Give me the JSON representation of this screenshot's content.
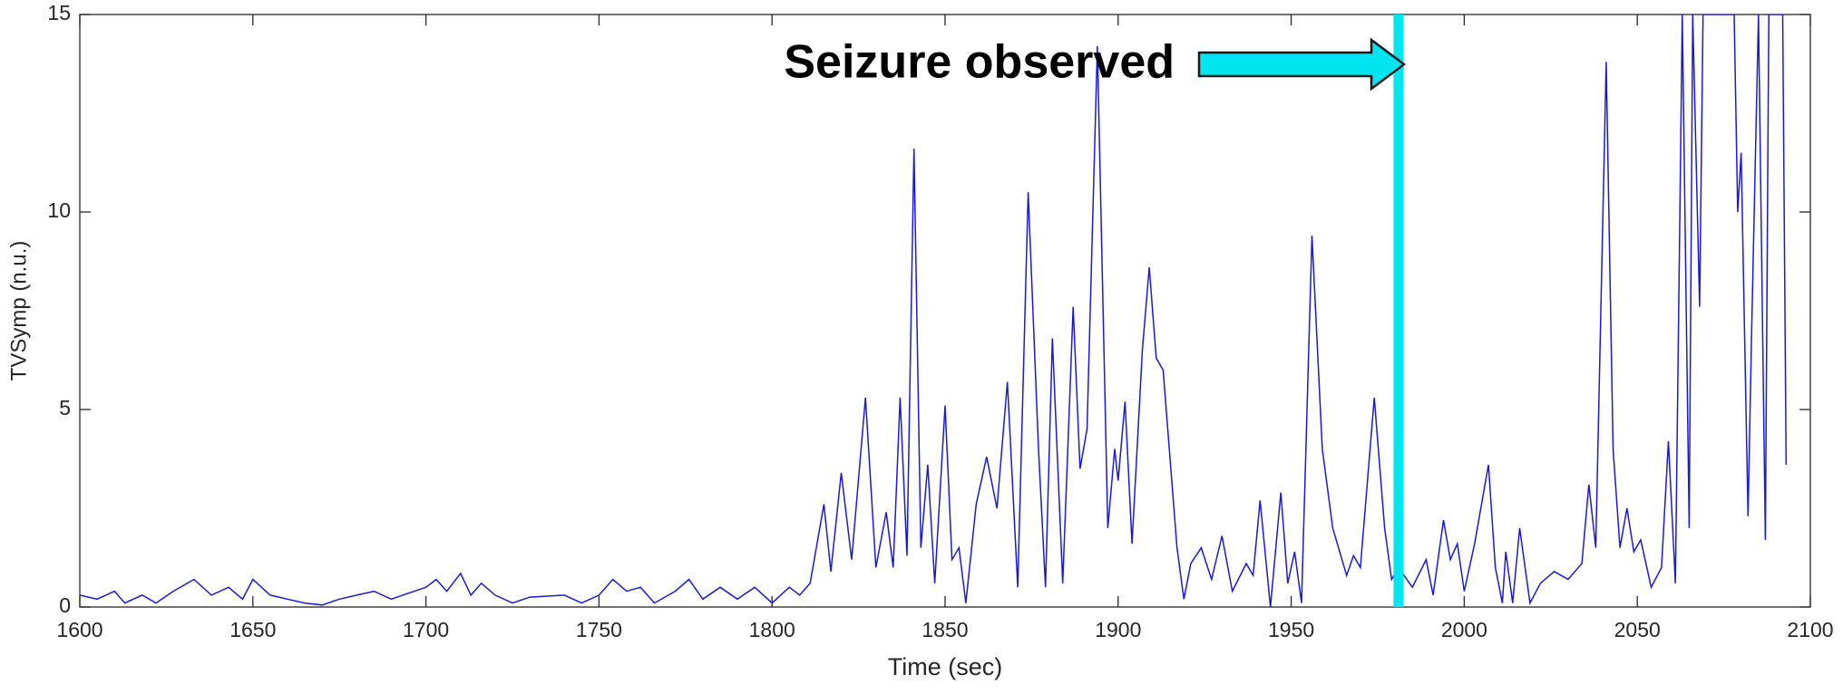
{
  "chart_data": {
    "type": "line",
    "x_label": "Time (sec)",
    "y_label": "TVSymp (n.u.)",
    "x": [
      1600,
      1605,
      1610,
      1613,
      1618,
      1622,
      1627,
      1633,
      1638,
      1643,
      1647,
      1650,
      1655,
      1660,
      1665,
      1670,
      1675,
      1680,
      1685,
      1690,
      1695,
      1700,
      1703,
      1706,
      1710,
      1713,
      1716,
      1720,
      1725,
      1730,
      1740,
      1745,
      1750,
      1754,
      1758,
      1762,
      1766,
      1772,
      1776,
      1780,
      1785,
      1790,
      1795,
      1800,
      1805,
      1808,
      1811,
      1815,
      1817,
      1820,
      1823,
      1827,
      1830,
      1833,
      1835,
      1837,
      1839,
      1841,
      1843,
      1845,
      1847,
      1850,
      1852,
      1854,
      1856,
      1859,
      1862,
      1865,
      1868,
      1871,
      1874,
      1877,
      1879,
      1881,
      1884,
      1887,
      1889,
      1891,
      1894,
      1897,
      1899,
      1900,
      1902,
      1904,
      1907,
      1909,
      1911,
      1913,
      1917,
      1919,
      1921,
      1924,
      1927,
      1930,
      1933,
      1937,
      1939,
      1941,
      1944,
      1947,
      1949,
      1951,
      1953,
      1956,
      1959,
      1962,
      1966,
      1968,
      1970,
      1974,
      1977,
      1979,
      1981,
      1985,
      1989,
      1991,
      1994,
      1996,
      1998,
      2000,
      2003,
      2007,
      2009,
      2011,
      2012,
      2014,
      2016,
      2019,
      2022,
      2026,
      2030,
      2034,
      2036,
      2038,
      2041,
      2043,
      2045,
      2047,
      2049,
      2051,
      2054,
      2057,
      2059,
      2061,
      2063,
      2065,
      2066,
      2068,
      2069,
      2072,
      2078,
      2079,
      2080,
      2082,
      2083,
      2085,
      2087,
      2088,
      2092,
      2093
    ],
    "series": [
      {
        "color": "#1a1ad4",
        "values": [
          0.3,
          0.2,
          0.4,
          0.1,
          0.3,
          0.1,
          0.4,
          0.7,
          0.3,
          0.5,
          0.2,
          0.7,
          0.3,
          0.2,
          0.1,
          0.05,
          0.2,
          0.3,
          0.4,
          0.2,
          0.35,
          0.5,
          0.7,
          0.4,
          0.85,
          0.3,
          0.6,
          0.3,
          0.1,
          0.25,
          0.3,
          0.1,
          0.3,
          0.7,
          0.4,
          0.5,
          0.1,
          0.4,
          0.7,
          0.2,
          0.5,
          0.2,
          0.5,
          0.1,
          0.5,
          0.3,
          0.6,
          2.6,
          0.9,
          3.4,
          1.2,
          5.3,
          1.0,
          2.4,
          1.0,
          5.3,
          1.3,
          11.6,
          1.5,
          3.6,
          0.6,
          5.1,
          1.2,
          1.5,
          0.1,
          2.6,
          3.8,
          2.5,
          5.7,
          0.5,
          10.5,
          4.0,
          0.5,
          6.8,
          0.6,
          7.6,
          3.5,
          4.5,
          14.2,
          2.0,
          4.0,
          3.2,
          5.2,
          1.6,
          6.5,
          8.6,
          6.3,
          6.0,
          1.5,
          0.2,
          1.1,
          1.5,
          0.7,
          1.8,
          0.4,
          1.1,
          0.8,
          2.7,
          0.0,
          2.9,
          0.6,
          1.4,
          0.1,
          9.4,
          4.0,
          2.0,
          0.8,
          1.3,
          1.0,
          5.3,
          2.0,
          0.7,
          1.0,
          0.5,
          1.2,
          0.3,
          2.2,
          1.2,
          1.6,
          0.4,
          1.6,
          3.6,
          1.0,
          0.1,
          1.4,
          0.1,
          2.0,
          0.1,
          0.6,
          0.9,
          0.7,
          1.1,
          3.1,
          1.5,
          13.8,
          4.0,
          1.5,
          2.5,
          1.4,
          1.7,
          0.5,
          1.0,
          4.2,
          0.6,
          15,
          2.0,
          15,
          7.6,
          15,
          15,
          15,
          10,
          11.5,
          2.3,
          6.8,
          15,
          1.7,
          15,
          15,
          3.6
        ]
      }
    ],
    "xlim": [
      1600,
      2100
    ],
    "xticks": [
      1600,
      1650,
      1700,
      1750,
      1800,
      1850,
      1900,
      1950,
      2000,
      2050,
      2100
    ],
    "ylim": [
      0,
      15
    ],
    "yticks": [
      0,
      5,
      10,
      15
    ],
    "annotation": {
      "text": "Seizure observed",
      "x": 1981,
      "color": "#00e5f0"
    }
  }
}
